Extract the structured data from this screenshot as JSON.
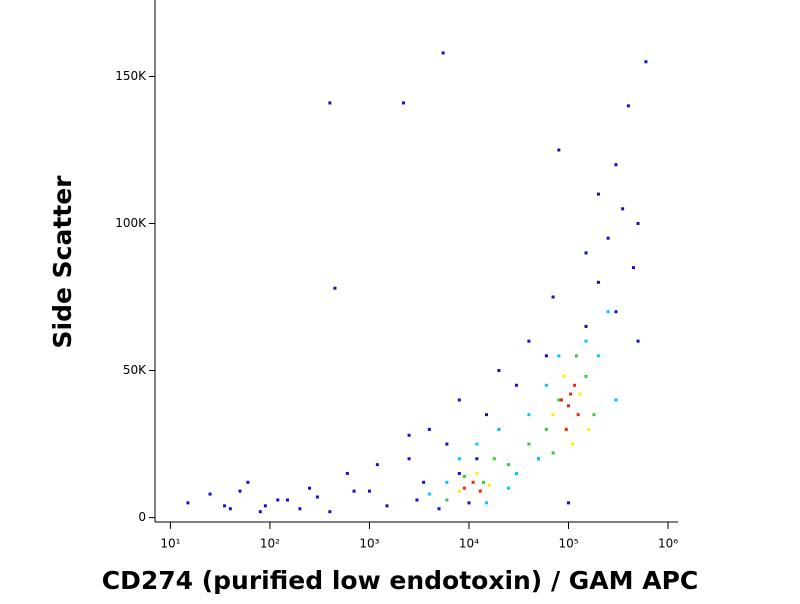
{
  "chart_data": {
    "type": "scatter",
    "x_label": "CD274 (purified low endotoxin) / GAM APC",
    "y_label": "Side Scatter",
    "xscale": "log",
    "xlim": [
      7,
      1260000
    ],
    "ylim": [
      -1500,
      176000
    ],
    "xticks": [
      {
        "value": 10,
        "label": "10¹"
      },
      {
        "value": 100,
        "label": "10²"
      },
      {
        "value": 1000,
        "label": "10³"
      },
      {
        "value": 10000,
        "label": "10⁴"
      },
      {
        "value": 100000,
        "label": "10⁵"
      },
      {
        "value": 1000000,
        "label": "10⁶"
      }
    ],
    "yticks": [
      0,
      {
        "value": 50000,
        "label": "50K"
      },
      {
        "value": 100000,
        "label": "100K"
      },
      {
        "value": 150000,
        "label": "150K"
      }
    ],
    "series": [
      {
        "color": "#1010d0",
        "x": [
          15,
          25,
          40,
          60,
          90,
          150,
          250,
          400,
          600,
          1000,
          1500,
          2500,
          3000,
          4000,
          5000,
          6000,
          8000,
          10000,
          15000,
          20000,
          30000,
          40000,
          50000,
          70000,
          100000,
          150000,
          200000,
          300000,
          400000,
          500000,
          600000,
          400,
          450,
          2200,
          5500,
          300000,
          150000,
          200000,
          250000,
          350000,
          450000,
          500000,
          80000,
          60000,
          30000,
          20000,
          12000,
          8000,
          3500,
          2500,
          1200,
          700,
          300,
          200,
          120,
          80,
          50,
          35
        ],
        "values": [
          5000,
          8000,
          3000,
          12000,
          4000,
          6000,
          10000,
          2000,
          15000,
          9000,
          4000,
          20000,
          6000,
          30000,
          3000,
          25000,
          40000,
          5000,
          35000,
          50000,
          15000,
          60000,
          20000,
          75000,
          5000,
          90000,
          110000,
          120000,
          140000,
          100000,
          155000,
          141000,
          78000,
          141000,
          158000,
          70000,
          65000,
          80000,
          95000,
          105000,
          85000,
          60000,
          125000,
          55000,
          45000,
          30000,
          20000,
          15000,
          12000,
          28000,
          18000,
          9000,
          7000,
          3000,
          6000,
          2000,
          9000,
          4000
        ]
      },
      {
        "color": "#00c8ff",
        "x": [
          4000,
          6000,
          8000,
          12000,
          20000,
          30000,
          50000,
          60000,
          80000,
          150000,
          200000,
          250000,
          300000,
          40000,
          25000,
          15000
        ],
        "values": [
          8000,
          12000,
          20000,
          25000,
          30000,
          15000,
          20000,
          45000,
          55000,
          60000,
          55000,
          70000,
          40000,
          35000,
          10000,
          5000
        ]
      },
      {
        "color": "#33cc33",
        "x": [
          6000,
          9000,
          14000,
          18000,
          25000,
          40000,
          60000,
          80000,
          150000,
          180000,
          70000,
          120000
        ],
        "values": [
          6000,
          14000,
          12000,
          20000,
          18000,
          25000,
          30000,
          40000,
          48000,
          35000,
          22000,
          55000
        ]
      },
      {
        "color": "#ffee00",
        "x": [
          8000,
          12000,
          16000,
          70000,
          90000,
          130000,
          160000,
          110000
        ],
        "values": [
          9000,
          15000,
          11000,
          35000,
          48000,
          42000,
          30000,
          25000
        ]
      },
      {
        "color": "#ff2000",
        "x": [
          9000,
          11000,
          13000,
          85000,
          100000,
          115000,
          125000,
          95000,
          105000
        ],
        "values": [
          10000,
          12000,
          9000,
          40000,
          38000,
          45000,
          35000,
          30000,
          42000
        ]
      }
    ]
  }
}
